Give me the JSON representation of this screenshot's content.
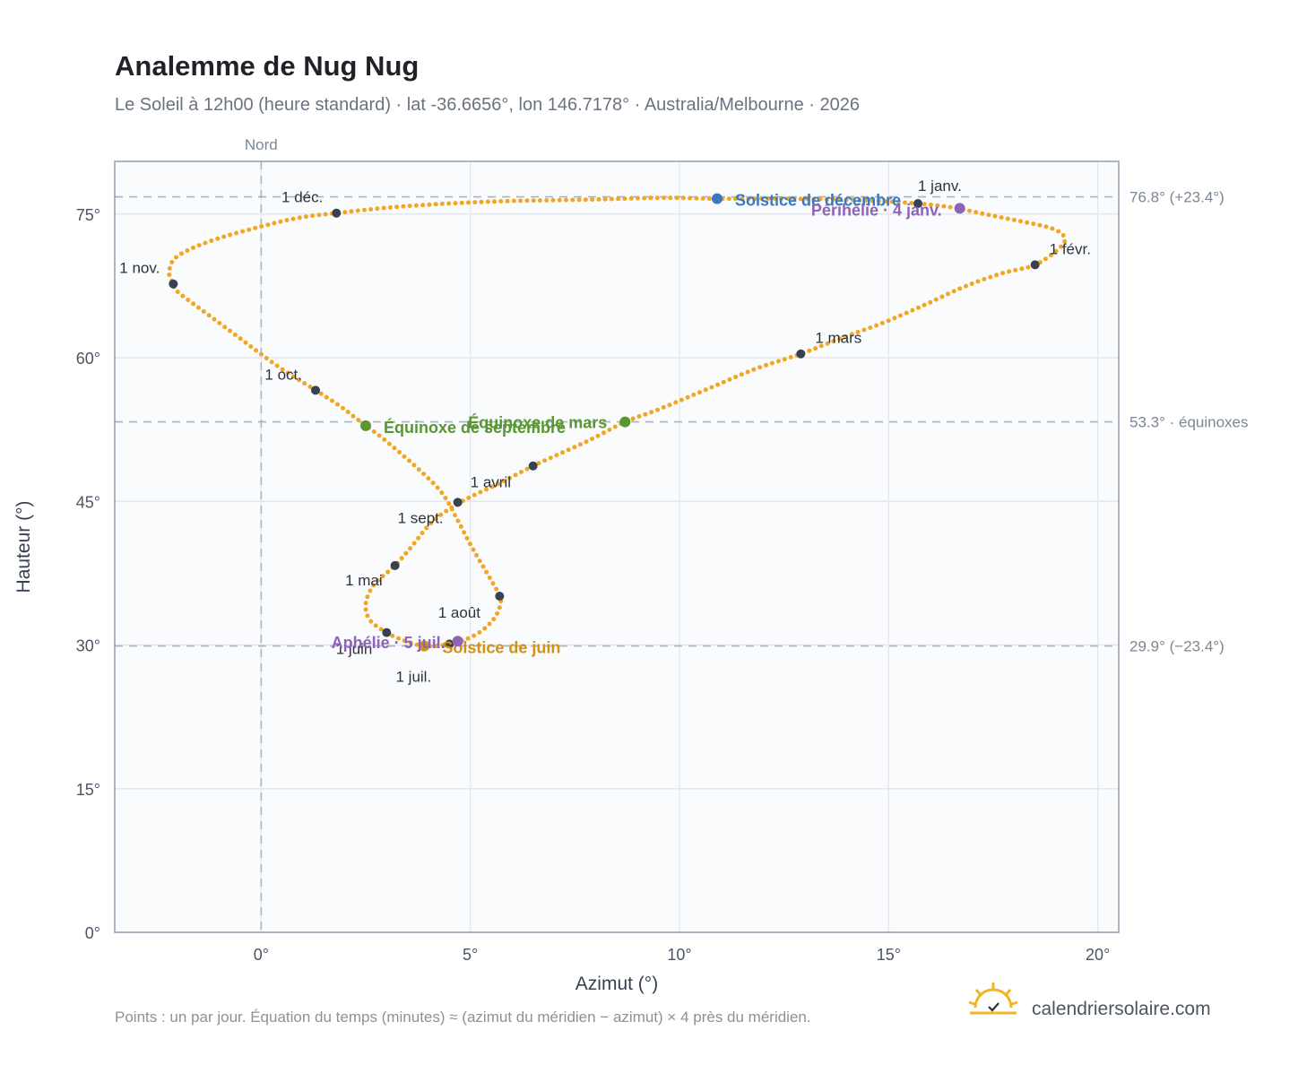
{
  "title": "Analemme de Nug Nug",
  "subtitle": "Le Soleil à 12h00 (heure standard) · lat -36.6656°, lon 146.7178° · Australia/Melbourne · 2026",
  "note": "Points : un par jour. Équation du temps (minutes) ≈ (azimut du méridien − azimut) × 4 près du méridien.",
  "brand": "calendriersolaire.com",
  "colors": {
    "curve": "#f2a623",
    "month_dot": "#374151",
    "december_solstice": "#3a78c0",
    "june_solstice": "#d4920f",
    "equinox": "#5a9631",
    "apsis": "#8e63b8",
    "plot_bg": "#f9fbfd",
    "grid": "#e4e8ee",
    "ref_line": "#a9b4c0"
  },
  "chart_data": {
    "type": "scatter",
    "title": "Analemme de Nug Nug",
    "xlabel": "Azimut (°)",
    "ylabel": "Hauteur (°)",
    "xlim": [
      -3.5,
      20.5
    ],
    "ylim": [
      0,
      80.5
    ],
    "x_ticks": [
      0,
      5,
      10,
      15,
      20
    ],
    "x_tick_labels": [
      "0°",
      "5°",
      "10°",
      "15°",
      "20°"
    ],
    "y_ticks": [
      0,
      15,
      30,
      45,
      60,
      75
    ],
    "y_tick_labels": [
      "0°",
      "15°",
      "30°",
      "45°",
      "60°",
      "75°"
    ],
    "grid": true,
    "meridian": {
      "x": 0,
      "label": "Nord"
    },
    "reference_lines": [
      {
        "y": 76.8,
        "label": "76.8° (+23.4°)"
      },
      {
        "y": 53.3,
        "label": "53.3° · équinoxes"
      },
      {
        "y": 29.9,
        "label": "29.9° (−23.4°)"
      }
    ],
    "months": [
      {
        "label": "1 janv.",
        "x": 15.7,
        "y": 76.1
      },
      {
        "label": "1 févr.",
        "x": 18.5,
        "y": 69.7
      },
      {
        "label": "1 mars",
        "x": 12.9,
        "y": 60.4
      },
      {
        "label": "1 avril",
        "x": 6.5,
        "y": 48.7
      },
      {
        "label": "1 mai",
        "x": 3.2,
        "y": 38.3
      },
      {
        "label": "1 juin",
        "x": 3.0,
        "y": 31.3
      },
      {
        "label": "1 juil.",
        "x": 4.5,
        "y": 30.1
      },
      {
        "label": "1 août",
        "x": 5.7,
        "y": 35.1
      },
      {
        "label": "1 sept.",
        "x": 4.7,
        "y": 44.9
      },
      {
        "label": "1 oct.",
        "x": 1.3,
        "y": 56.6
      },
      {
        "label": "1 nov.",
        "x": -2.1,
        "y": 67.7
      },
      {
        "label": "1 déc.",
        "x": 1.8,
        "y": 75.1
      }
    ],
    "events": [
      {
        "label": "Solstice de décembre",
        "x": 10.9,
        "y": 76.6,
        "kind": "december_solstice"
      },
      {
        "label": "Périhélie · 4 janv.",
        "x": 16.7,
        "y": 75.6,
        "kind": "apsis"
      },
      {
        "label": "Équinoxe de mars",
        "x": 8.7,
        "y": 53.3,
        "kind": "equinox"
      },
      {
        "label": "Équinoxe de septembre",
        "x": 2.5,
        "y": 52.9,
        "kind": "equinox"
      },
      {
        "label": "Solstice de juin",
        "x": 3.9,
        "y": 29.9,
        "kind": "june_solstice"
      },
      {
        "label": "Aphélie · 5 juil.",
        "x": 4.7,
        "y": 30.4,
        "kind": "apsis"
      }
    ],
    "curve_points": [
      [
        15.7,
        76.1
      ],
      [
        16.5,
        75.7
      ],
      [
        17.4,
        74.9
      ],
      [
        18.2,
        74.2
      ],
      [
        18.9,
        73.5
      ],
      [
        19.2,
        72.6
      ],
      [
        19.1,
        71.5
      ],
      [
        18.5,
        69.7
      ],
      [
        17.7,
        68.8
      ],
      [
        16.8,
        67.4
      ],
      [
        15.9,
        65.6
      ],
      [
        14.9,
        63.7
      ],
      [
        13.9,
        62.1
      ],
      [
        12.9,
        60.4
      ],
      [
        11.8,
        58.8
      ],
      [
        10.6,
        56.6
      ],
      [
        9.5,
        54.6
      ],
      [
        8.7,
        53.3
      ],
      [
        7.9,
        51.5
      ],
      [
        7.0,
        49.7
      ],
      [
        6.5,
        48.7
      ],
      [
        5.7,
        46.9
      ],
      [
        4.8,
        45.0
      ],
      [
        4.1,
        42.9
      ],
      [
        3.6,
        40.3
      ],
      [
        3.2,
        38.3
      ],
      [
        2.7,
        36.3
      ],
      [
        2.5,
        34.3
      ],
      [
        2.6,
        32.6
      ],
      [
        3.0,
        31.3
      ],
      [
        3.4,
        30.5
      ],
      [
        3.9,
        29.9
      ],
      [
        4.5,
        30.1
      ],
      [
        5.1,
        31.0
      ],
      [
        5.5,
        32.4
      ],
      [
        5.7,
        33.9
      ],
      [
        5.7,
        35.1
      ],
      [
        5.4,
        37.5
      ],
      [
        5.0,
        40.5
      ],
      [
        4.7,
        43.0
      ],
      [
        4.3,
        46.0
      ],
      [
        3.6,
        49.0
      ],
      [
        2.9,
        51.6
      ],
      [
        2.5,
        52.9
      ],
      [
        1.9,
        54.9
      ],
      [
        1.3,
        56.6
      ],
      [
        0.4,
        59.1
      ],
      [
        -0.5,
        62.0
      ],
      [
        -1.3,
        64.6
      ],
      [
        -2.0,
        66.9
      ],
      [
        -2.1,
        67.7
      ],
      [
        -2.2,
        69.0
      ],
      [
        -2.0,
        70.6
      ],
      [
        -1.2,
        72.2
      ],
      [
        0.0,
        73.7
      ],
      [
        0.9,
        74.6
      ],
      [
        1.8,
        75.1
      ],
      [
        3.4,
        75.8
      ],
      [
        5.5,
        76.3
      ],
      [
        7.8,
        76.5
      ],
      [
        9.6,
        76.7
      ],
      [
        10.9,
        76.6
      ],
      [
        12.8,
        76.6
      ],
      [
        14.6,
        76.4
      ],
      [
        15.7,
        76.1
      ]
    ]
  }
}
